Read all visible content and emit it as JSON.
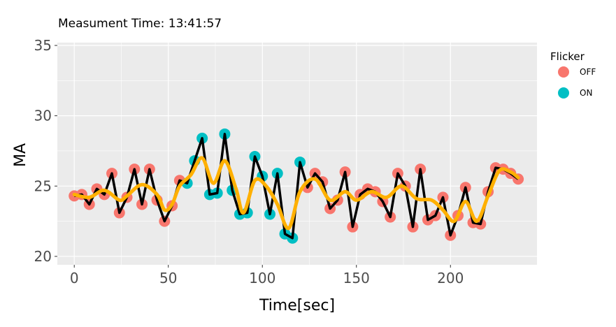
{
  "subtitle": "Measument Time: 13:41:57",
  "chart_data": {
    "type": "line",
    "title": "",
    "xlabel": "Time[sec]",
    "ylabel": "MA",
    "xlim": [
      -9,
      246
    ],
    "ylim": [
      19.4,
      35.2
    ],
    "x_ticks": [
      0,
      50,
      100,
      150,
      200
    ],
    "y_ticks": [
      20,
      25,
      30,
      35
    ],
    "grid": true,
    "legend": {
      "title": "Flicker",
      "position": "right",
      "entries": [
        {
          "label": "OFF",
          "color": "#F8766D"
        },
        {
          "label": "ON",
          "color": "#00BFC4"
        }
      ]
    },
    "raw_line_color": "#000000",
    "smooth_line_color": "#FFB000",
    "series": [
      {
        "name": "MA",
        "points": [
          {
            "x": 0,
            "y": 24.3,
            "flicker": "OFF"
          },
          {
            "x": 4,
            "y": 24.4,
            "flicker": "OFF"
          },
          {
            "x": 8,
            "y": 23.7,
            "flicker": "OFF"
          },
          {
            "x": 12,
            "y": 24.8,
            "flicker": "OFF"
          },
          {
            "x": 16,
            "y": 24.4,
            "flicker": "OFF"
          },
          {
            "x": 20,
            "y": 25.9,
            "flicker": "OFF"
          },
          {
            "x": 24,
            "y": 23.1,
            "flicker": "OFF"
          },
          {
            "x": 28,
            "y": 24.2,
            "flicker": "OFF"
          },
          {
            "x": 32,
            "y": 26.2,
            "flicker": "OFF"
          },
          {
            "x": 36,
            "y": 23.7,
            "flicker": "OFF"
          },
          {
            "x": 40,
            "y": 26.2,
            "flicker": "OFF"
          },
          {
            "x": 44,
            "y": 24.0,
            "flicker": "OFF"
          },
          {
            "x": 48,
            "y": 22.5,
            "flicker": "OFF"
          },
          {
            "x": 52,
            "y": 23.6,
            "flicker": "OFF"
          },
          {
            "x": 56,
            "y": 25.4,
            "flicker": "OFF"
          },
          {
            "x": 60,
            "y": 25.2,
            "flicker": "ON"
          },
          {
            "x": 64,
            "y": 26.8,
            "flicker": "ON"
          },
          {
            "x": 68,
            "y": 28.4,
            "flicker": "ON"
          },
          {
            "x": 72,
            "y": 24.4,
            "flicker": "ON"
          },
          {
            "x": 76,
            "y": 24.5,
            "flicker": "ON"
          },
          {
            "x": 80,
            "y": 28.7,
            "flicker": "ON"
          },
          {
            "x": 84,
            "y": 24.7,
            "flicker": "ON"
          },
          {
            "x": 88,
            "y": 23.0,
            "flicker": "ON"
          },
          {
            "x": 92,
            "y": 23.1,
            "flicker": "ON"
          },
          {
            "x": 96,
            "y": 27.1,
            "flicker": "ON"
          },
          {
            "x": 100,
            "y": 25.7,
            "flicker": "ON"
          },
          {
            "x": 104,
            "y": 23.0,
            "flicker": "ON"
          },
          {
            "x": 108,
            "y": 25.9,
            "flicker": "ON"
          },
          {
            "x": 112,
            "y": 21.6,
            "flicker": "ON"
          },
          {
            "x": 116,
            "y": 21.3,
            "flicker": "ON"
          },
          {
            "x": 120,
            "y": 26.7,
            "flicker": "ON"
          },
          {
            "x": 124,
            "y": 24.9,
            "flicker": "OFF"
          },
          {
            "x": 128,
            "y": 25.9,
            "flicker": "OFF"
          },
          {
            "x": 132,
            "y": 25.3,
            "flicker": "OFF"
          },
          {
            "x": 136,
            "y": 23.4,
            "flicker": "OFF"
          },
          {
            "x": 140,
            "y": 24.0,
            "flicker": "OFF"
          },
          {
            "x": 144,
            "y": 26.0,
            "flicker": "OFF"
          },
          {
            "x": 148,
            "y": 22.1,
            "flicker": "OFF"
          },
          {
            "x": 152,
            "y": 24.4,
            "flicker": "OFF"
          },
          {
            "x": 156,
            "y": 24.8,
            "flicker": "OFF"
          },
          {
            "x": 160,
            "y": 24.6,
            "flicker": "OFF"
          },
          {
            "x": 164,
            "y": 23.9,
            "flicker": "OFF"
          },
          {
            "x": 168,
            "y": 22.8,
            "flicker": "OFF"
          },
          {
            "x": 172,
            "y": 25.9,
            "flicker": "OFF"
          },
          {
            "x": 176,
            "y": 25.0,
            "flicker": "OFF"
          },
          {
            "x": 180,
            "y": 22.1,
            "flicker": "OFF"
          },
          {
            "x": 184,
            "y": 26.2,
            "flicker": "OFF"
          },
          {
            "x": 188,
            "y": 22.6,
            "flicker": "OFF"
          },
          {
            "x": 192,
            "y": 22.9,
            "flicker": "OFF"
          },
          {
            "x": 196,
            "y": 24.2,
            "flicker": "OFF"
          },
          {
            "x": 200,
            "y": 21.5,
            "flicker": "OFF"
          },
          {
            "x": 204,
            "y": 22.9,
            "flicker": "OFF"
          },
          {
            "x": 208,
            "y": 24.9,
            "flicker": "OFF"
          },
          {
            "x": 212,
            "y": 22.4,
            "flicker": "OFF"
          },
          {
            "x": 216,
            "y": 22.3,
            "flicker": "OFF"
          },
          {
            "x": 220,
            "y": 24.6,
            "flicker": "OFF"
          },
          {
            "x": 224,
            "y": 26.3,
            "flicker": "OFF"
          },
          {
            "x": 228,
            "y": 26.2,
            "flicker": "OFF"
          },
          {
            "x": 232,
            "y": 25.9,
            "flicker": "OFF"
          },
          {
            "x": 236,
            "y": 25.5,
            "flicker": "OFF"
          }
        ]
      },
      {
        "name": "smoothed",
        "points": [
          {
            "x": 0,
            "y": 24.4
          },
          {
            "x": 8,
            "y": 24.2
          },
          {
            "x": 16,
            "y": 24.7
          },
          {
            "x": 24,
            "y": 24.0
          },
          {
            "x": 28,
            "y": 24.3
          },
          {
            "x": 36,
            "y": 25.1
          },
          {
            "x": 44,
            "y": 24.4
          },
          {
            "x": 48,
            "y": 23.3
          },
          {
            "x": 52,
            "y": 23.7
          },
          {
            "x": 56,
            "y": 25.0
          },
          {
            "x": 62,
            "y": 25.8
          },
          {
            "x": 68,
            "y": 27.0
          },
          {
            "x": 74,
            "y": 25.2
          },
          {
            "x": 80,
            "y": 26.8
          },
          {
            "x": 86,
            "y": 24.8
          },
          {
            "x": 90,
            "y": 23.1
          },
          {
            "x": 96,
            "y": 25.4
          },
          {
            "x": 102,
            "y": 25.0
          },
          {
            "x": 108,
            "y": 23.7
          },
          {
            "x": 114,
            "y": 22.0
          },
          {
            "x": 120,
            "y": 24.6
          },
          {
            "x": 128,
            "y": 25.5
          },
          {
            "x": 136,
            "y": 24.0
          },
          {
            "x": 144,
            "y": 24.6
          },
          {
            "x": 150,
            "y": 24.0
          },
          {
            "x": 158,
            "y": 24.6
          },
          {
            "x": 166,
            "y": 24.2
          },
          {
            "x": 174,
            "y": 25.0
          },
          {
            "x": 182,
            "y": 24.1
          },
          {
            "x": 190,
            "y": 24.0
          },
          {
            "x": 196,
            "y": 23.3
          },
          {
            "x": 202,
            "y": 22.5
          },
          {
            "x": 208,
            "y": 23.9
          },
          {
            "x": 214,
            "y": 22.5
          },
          {
            "x": 220,
            "y": 24.3
          },
          {
            "x": 226,
            "y": 26.1
          },
          {
            "x": 232,
            "y": 26.0
          },
          {
            "x": 236,
            "y": 25.6
          }
        ]
      }
    ]
  }
}
